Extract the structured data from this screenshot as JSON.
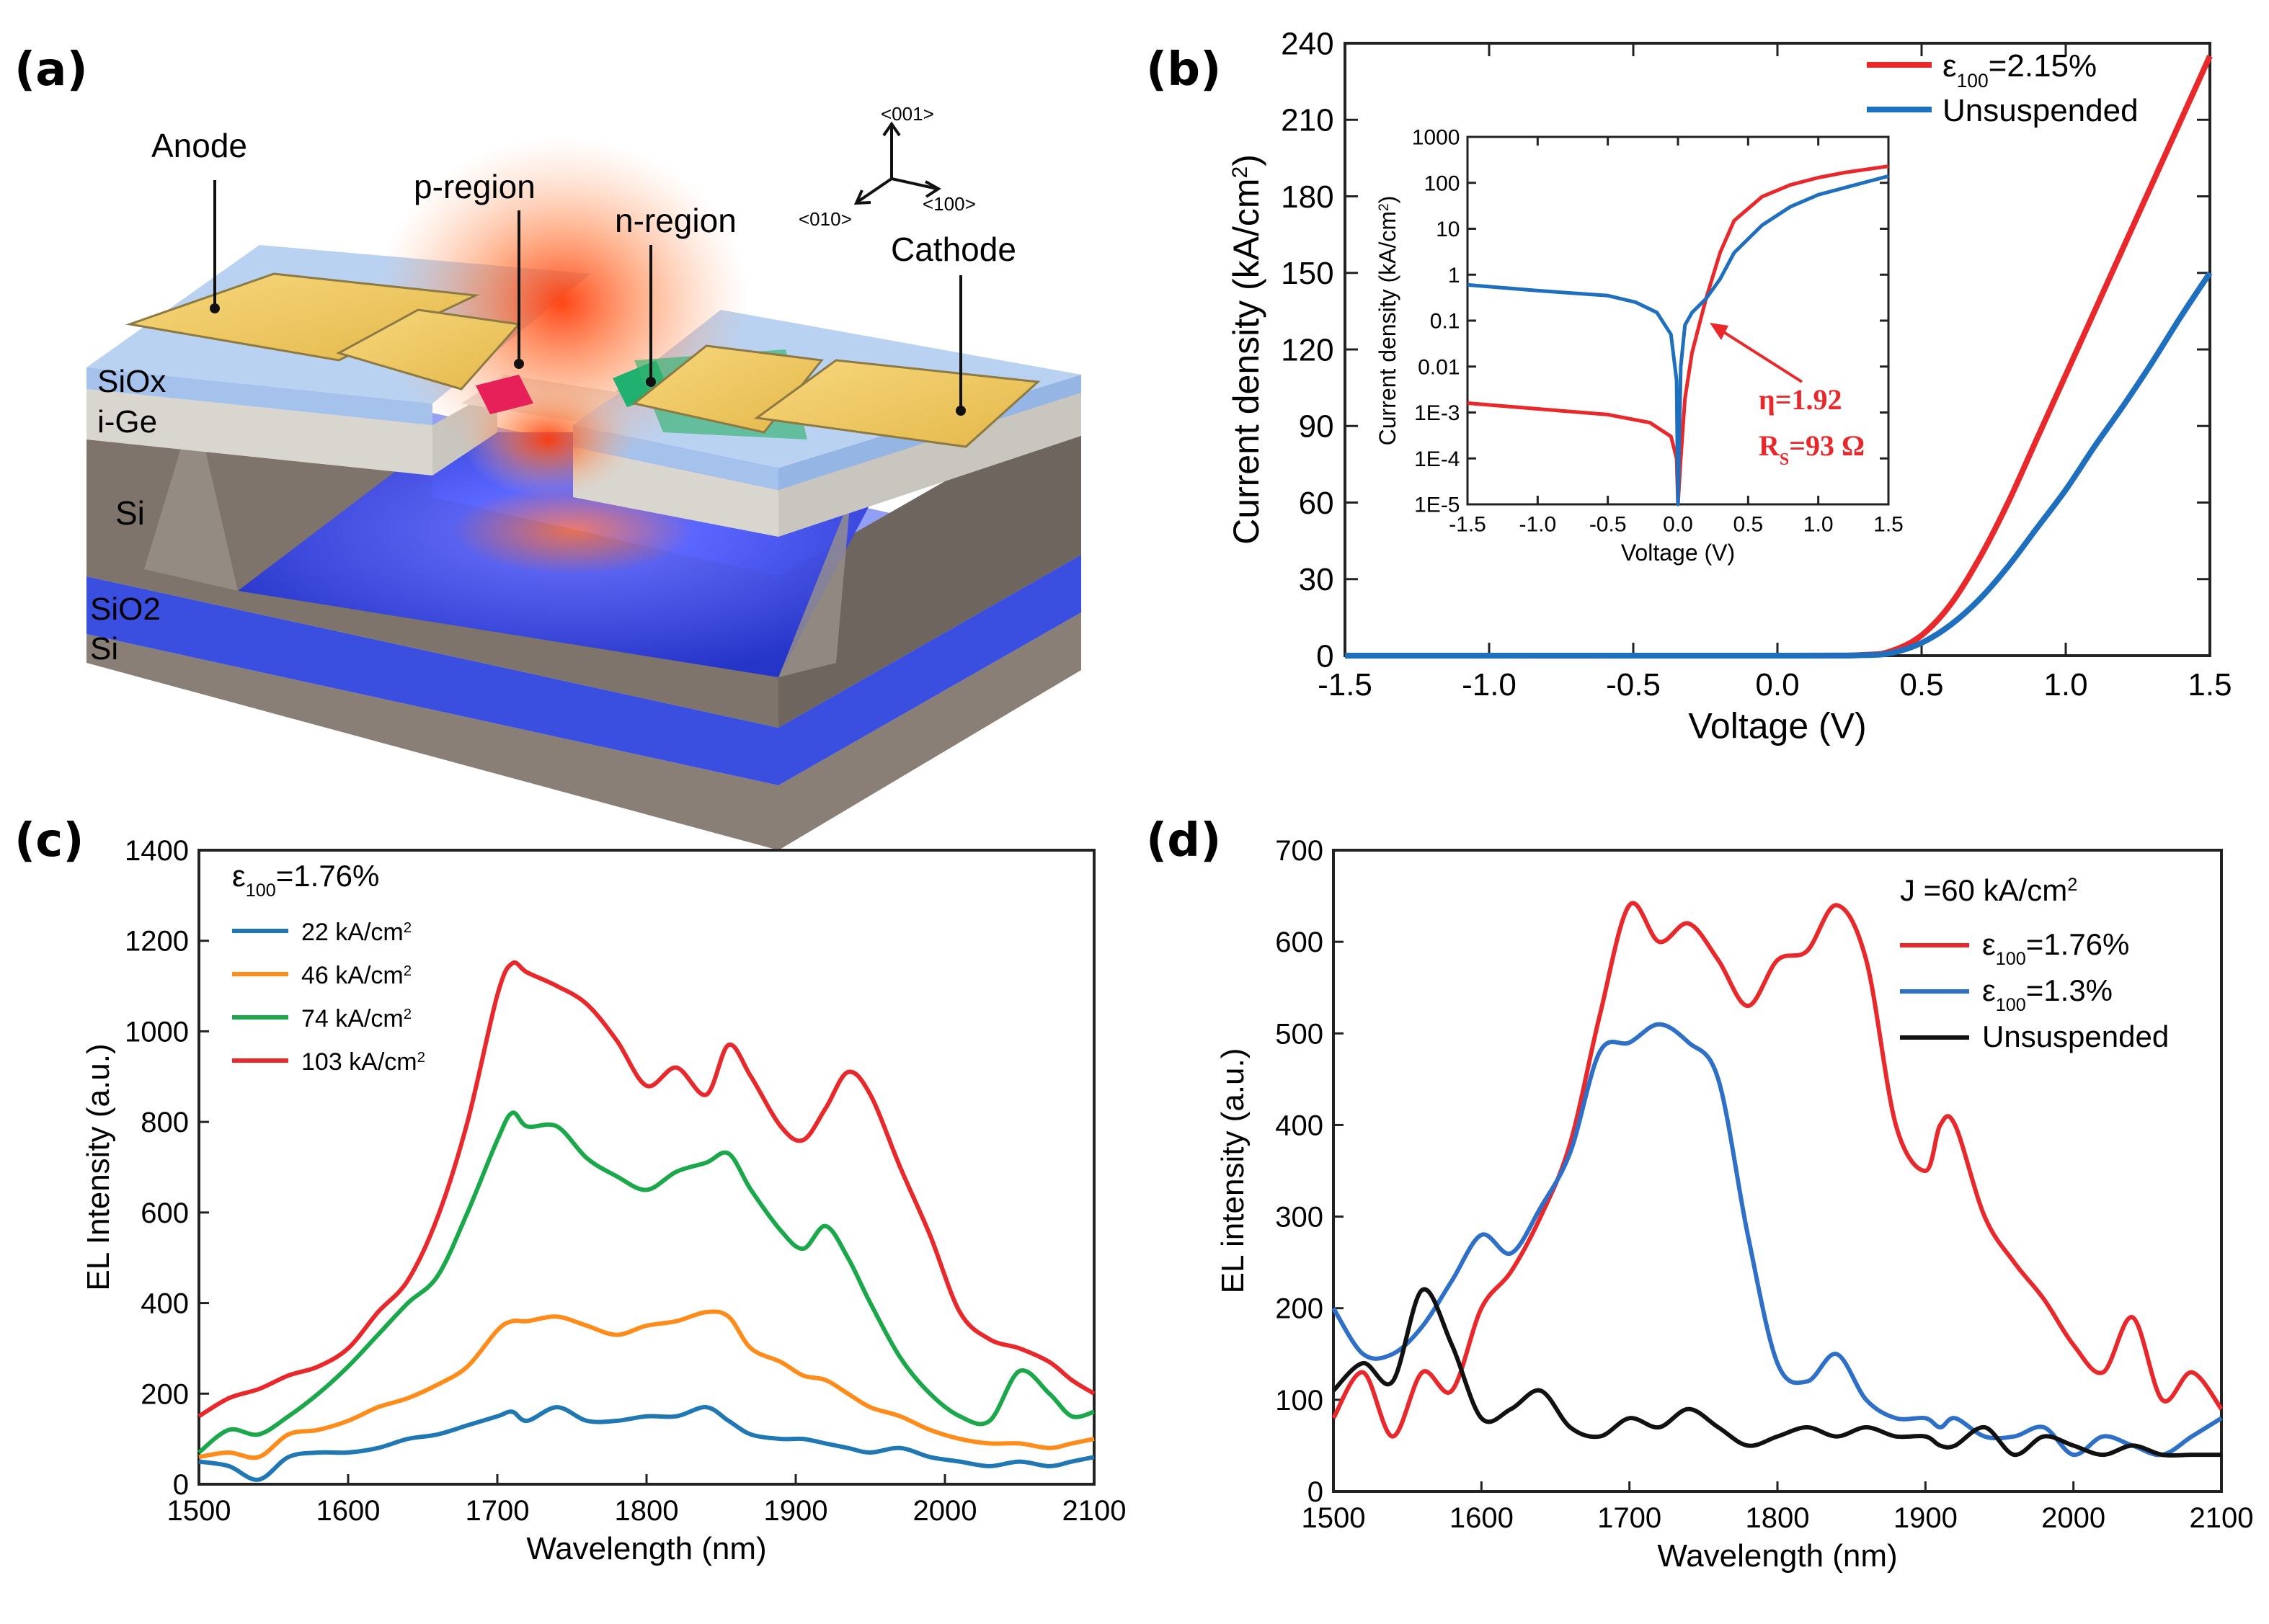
{
  "panel_labels": {
    "a": "(a)",
    "b": "(b)",
    "c": "(c)",
    "d": "(d)"
  },
  "device": {
    "labels": {
      "anode": "Anode",
      "p_region": "p-region",
      "n_region": "n-region",
      "cathode": "Cathode",
      "siox": "SiOx",
      "ige": "i-Ge",
      "si_top": "Si",
      "sio2": "SiO2",
      "si_bottom": "Si"
    },
    "axes": {
      "up": "<001>",
      "left": "<010>",
      "right": "<100>"
    },
    "colors": {
      "gold": "#f2c85e",
      "oxide": "#a8c8f0",
      "ge": "#d8d8d8",
      "si": "#8a7f76",
      "sio2": "#3a4fe0",
      "hot": "#ff5a1a",
      "p": "#e8205a",
      "n": "#20b070"
    }
  },
  "chart_data": [
    {
      "id": "b",
      "type": "line",
      "xlabel": "Voltage (V)",
      "ylabel": "Current density (kA/cm2)",
      "xlim": [
        -1.5,
        1.5
      ],
      "ylim": [
        0,
        240
      ],
      "xticks": [
        "-1.5",
        "-1.0",
        "-0.5",
        "0.0",
        "0.5",
        "1.0",
        "1.5"
      ],
      "yticks": [
        "0",
        "30",
        "60",
        "90",
        "120",
        "150",
        "180",
        "210",
        "240"
      ],
      "legend": [
        "ε100=2.15%",
        "Unsuspended"
      ],
      "series": [
        {
          "name": "ε100=2.15%",
          "color": "#e8282a",
          "x": [
            -1.5,
            0.0,
            0.3,
            0.4,
            0.5,
            0.6,
            0.7,
            0.8,
            0.9,
            1.0,
            1.1,
            1.2,
            1.3,
            1.4,
            1.5
          ],
          "y": [
            0,
            0,
            0.3,
            2,
            8,
            20,
            38,
            60,
            85,
            110,
            135,
            160,
            185,
            210,
            235
          ]
        },
        {
          "name": "Unsuspended",
          "color": "#1f6fbf",
          "x": [
            -1.5,
            0.0,
            0.3,
            0.4,
            0.5,
            0.6,
            0.7,
            0.8,
            0.9,
            1.0,
            1.1,
            1.2,
            1.3,
            1.4,
            1.5
          ],
          "y": [
            0,
            0,
            0.2,
            1.2,
            5,
            12,
            22,
            35,
            50,
            65,
            82,
            98,
            115,
            133,
            150
          ]
        }
      ],
      "inset": {
        "xlabel": "Voltage (V)",
        "ylabel": "Current density (kA/cm2)",
        "xlim": [
          -1.5,
          1.5
        ],
        "ylog": [
          -5,
          3
        ],
        "xticks": [
          "-1.5",
          "-1.0",
          "-0.5",
          "0.0",
          "0.5",
          "1.0",
          "1.5"
        ],
        "yticks": [
          "1E-5",
          "1E-4",
          "1E-3",
          "0.01",
          "0.1",
          "1",
          "10",
          "100",
          "1000"
        ],
        "annotation_eta": "η=1.92",
        "annotation_rs": "RS=93 Ω",
        "series": [
          {
            "name": "ε100=2.15%",
            "color": "#e8282a",
            "x": [
              -1.5,
              -1.0,
              -0.5,
              -0.2,
              -0.05,
              -0.01,
              0.0,
              0.02,
              0.05,
              0.1,
              0.2,
              0.3,
              0.4,
              0.6,
              0.8,
              1.0,
              1.2,
              1.5
            ],
            "y": [
              0.0016,
              0.0012,
              0.0009,
              0.0006,
              0.0003,
              0.0001,
              1e-05,
              0.0001,
              0.002,
              0.02,
              0.3,
              3,
              15,
              50,
              90,
              130,
              170,
              230
            ]
          },
          {
            "name": "Unsuspended",
            "color": "#1f6fbf",
            "x": [
              -1.5,
              -1.0,
              -0.5,
              -0.3,
              -0.15,
              -0.05,
              -0.01,
              0.0,
              0.02,
              0.05,
              0.1,
              0.2,
              0.3,
              0.4,
              0.6,
              0.8,
              1.0,
              1.2,
              1.5
            ],
            "y": [
              0.6,
              0.45,
              0.35,
              0.25,
              0.15,
              0.05,
              0.005,
              1e-05,
              0.01,
              0.08,
              0.15,
              0.3,
              0.8,
              3,
              12,
              30,
              55,
              80,
              140
            ]
          }
        ]
      }
    },
    {
      "id": "c",
      "type": "line",
      "xlabel": "Wavelength (nm)",
      "ylabel": "EL Intensity (a.u.)",
      "xlim": [
        1500,
        2100
      ],
      "ylim": [
        0,
        1400
      ],
      "xticks": [
        "1500",
        "1600",
        "1700",
        "1800",
        "1900",
        "2000",
        "2100"
      ],
      "yticks": [
        "0",
        "200",
        "400",
        "600",
        "800",
        "1000",
        "1200",
        "1400"
      ],
      "legend_title": "ε100=1.76%",
      "x": [
        1500,
        1520,
        1540,
        1560,
        1580,
        1600,
        1620,
        1640,
        1660,
        1680,
        1700,
        1710,
        1720,
        1740,
        1760,
        1780,
        1800,
        1820,
        1840,
        1855,
        1870,
        1890,
        1905,
        1920,
        1935,
        1950,
        1970,
        1990,
        2010,
        2030,
        2050,
        2070,
        2085,
        2100
      ],
      "series": [
        {
          "name": "22 kA/cm2",
          "color": "#1f77b4",
          "y": [
            50,
            40,
            10,
            60,
            70,
            70,
            80,
            100,
            110,
            130,
            150,
            160,
            140,
            170,
            140,
            140,
            150,
            150,
            170,
            140,
            110,
            100,
            100,
            90,
            80,
            70,
            80,
            60,
            50,
            40,
            50,
            40,
            50,
            60
          ]
        },
        {
          "name": "46 kA/cm2",
          "color": "#ff8c1a",
          "y": [
            60,
            70,
            60,
            110,
            120,
            140,
            170,
            190,
            220,
            260,
            340,
            360,
            360,
            370,
            350,
            330,
            350,
            360,
            380,
            370,
            300,
            270,
            240,
            230,
            200,
            170,
            150,
            120,
            100,
            90,
            90,
            80,
            90,
            100
          ]
        },
        {
          "name": "74 kA/cm2",
          "color": "#1aa84a",
          "y": [
            70,
            120,
            110,
            150,
            200,
            260,
            330,
            400,
            460,
            600,
            760,
            820,
            790,
            790,
            720,
            680,
            650,
            690,
            710,
            730,
            650,
            560,
            520,
            570,
            500,
            400,
            280,
            200,
            150,
            140,
            250,
            200,
            150,
            160
          ]
        },
        {
          "name": "103 kA/cm2",
          "color": "#e8282a",
          "y": [
            150,
            190,
            210,
            240,
            260,
            300,
            380,
            450,
            590,
            800,
            1080,
            1150,
            1130,
            1100,
            1060,
            980,
            880,
            920,
            860,
            970,
            900,
            790,
            760,
            830,
            910,
            860,
            700,
            550,
            380,
            320,
            300,
            270,
            230,
            200
          ]
        }
      ]
    },
    {
      "id": "d",
      "type": "line",
      "xlabel": "Wavelength (nm)",
      "ylabel": "EL intensity (a.u.)",
      "xlim": [
        1500,
        2100
      ],
      "ylim": [
        0,
        700
      ],
      "xticks": [
        "1500",
        "1600",
        "1700",
        "1800",
        "1900",
        "2000",
        "2100"
      ],
      "yticks": [
        "0",
        "100",
        "200",
        "300",
        "400",
        "500",
        "600",
        "700"
      ],
      "legend_title": "J =60 kA/cm2",
      "x": [
        1500,
        1520,
        1540,
        1560,
        1580,
        1600,
        1620,
        1640,
        1660,
        1680,
        1700,
        1720,
        1740,
        1760,
        1780,
        1800,
        1820,
        1840,
        1860,
        1880,
        1900,
        1910,
        1920,
        1940,
        1960,
        1980,
        2000,
        2020,
        2040,
        2060,
        2080,
        2100
      ],
      "series": [
        {
          "name": "ε100=1.76%",
          "color": "#e8282a",
          "y": [
            80,
            130,
            60,
            130,
            110,
            200,
            240,
            300,
            380,
            520,
            640,
            600,
            620,
            580,
            530,
            580,
            590,
            640,
            580,
            400,
            350,
            400,
            400,
            300,
            250,
            210,
            160,
            130,
            190,
            100,
            130,
            90
          ]
        },
        {
          "name": "ε100=1.3%",
          "color": "#2e6fc8",
          "y": [
            200,
            150,
            150,
            180,
            230,
            280,
            260,
            310,
            370,
            480,
            490,
            510,
            490,
            450,
            280,
            140,
            120,
            150,
            100,
            80,
            80,
            70,
            80,
            60,
            60,
            70,
            40,
            60,
            50,
            40,
            60,
            80
          ]
        },
        {
          "name": "Unsuspended",
          "color": "#111111",
          "y": [
            110,
            140,
            120,
            220,
            160,
            80,
            90,
            110,
            70,
            60,
            80,
            70,
            90,
            70,
            50,
            60,
            70,
            60,
            70,
            60,
            60,
            50,
            50,
            70,
            40,
            60,
            50,
            40,
            50,
            40,
            40,
            40
          ]
        }
      ]
    }
  ]
}
